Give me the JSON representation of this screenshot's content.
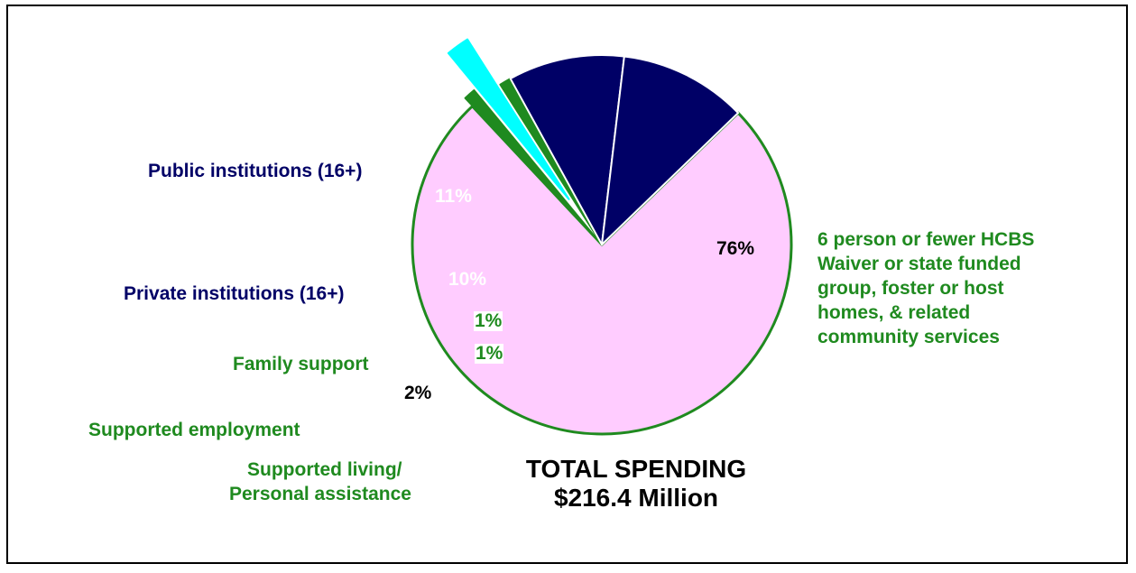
{
  "chart_data": {
    "type": "pie",
    "slices": [
      {
        "label": "6 person or fewer HCBS Waiver or state funded group, foster or host homes, & related community services",
        "value": 76,
        "value_label": "76%",
        "color": "#ffccff",
        "stroke": "#1f8a1f"
      },
      {
        "label": "Supported living/ Personal assistance",
        "value": 1,
        "value_label": "1%",
        "color": "#1f8a1f",
        "stroke": "#1f8a1f"
      },
      {
        "label": "Supported employment",
        "value": 2,
        "value_label": "2%",
        "color": "#00ffff",
        "stroke": "#00ffff"
      },
      {
        "label": "Family support",
        "value": 1,
        "value_label": "1%",
        "color": "#1f8a1f",
        "stroke": "#1f8a1f"
      },
      {
        "label": "Private institutions (16+)",
        "value": 10,
        "value_label": "10%",
        "color": "#000066",
        "stroke": "#ffffff"
      },
      {
        "label": "Public institutions (16+)",
        "value": 11,
        "value_label": "11%",
        "color": "#000066",
        "stroke": "#ffffff"
      }
    ],
    "total_title": "TOTAL SPENDING",
    "total_value": "$216.4 Million"
  },
  "labels": {
    "public": "Public institutions (16+)",
    "private": "Private institutions (16+)",
    "family": "Family support",
    "employment": "Supported employment",
    "living_1": "Supported living/",
    "living_2": "Personal assistance",
    "community_1": "6 person or fewer HCBS",
    "community_2": "Waiver or state funded",
    "community_3": "group, foster or host",
    "community_4": "homes, & related",
    "community_5": "community services"
  }
}
